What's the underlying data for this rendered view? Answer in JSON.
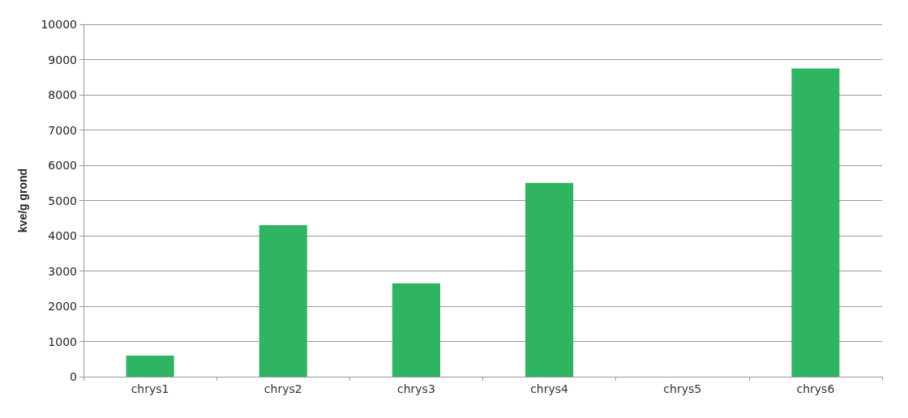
{
  "chart_data": {
    "type": "bar",
    "ylabel": "kve/g grond",
    "categories": [
      "chrys1",
      "chrys2",
      "chrys3",
      "chrys4",
      "chrys5",
      "chrys6"
    ],
    "values": [
      600,
      4300,
      2650,
      5500,
      0,
      8750
    ],
    "color": "#2fb462",
    "ylim": [
      0,
      10000
    ],
    "yticks": [
      0,
      1000,
      2000,
      3000,
      4000,
      5000,
      6000,
      7000,
      8000,
      9000,
      10000
    ],
    "grid": "y"
  }
}
